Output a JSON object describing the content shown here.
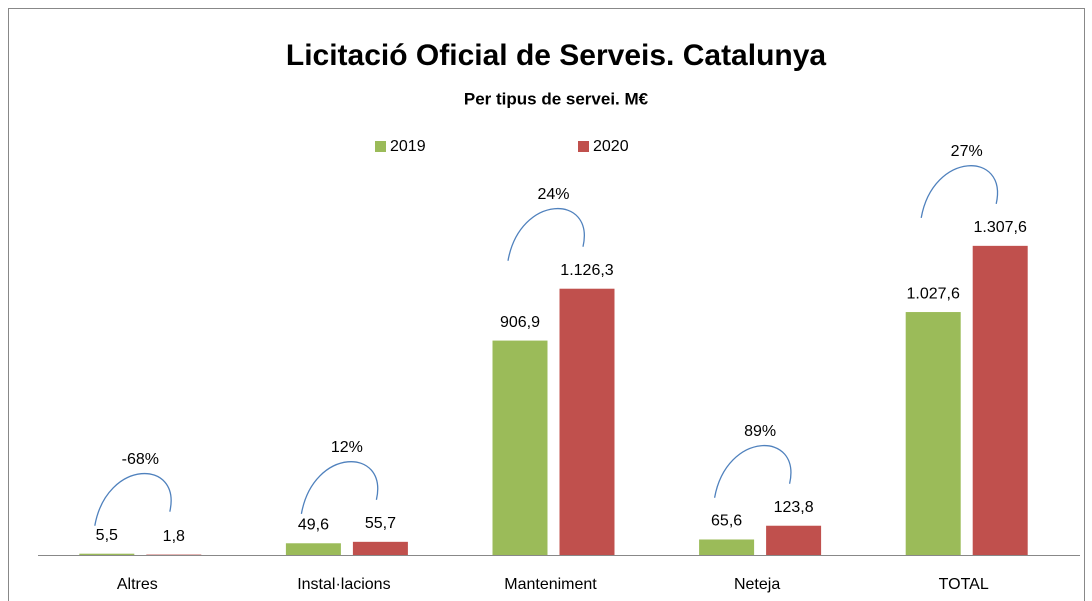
{
  "chart_data": {
    "type": "bar",
    "title": "Licitació Oficial de Serveis. Catalunya",
    "subtitle": "Per tipus de servei. M€",
    "categories": [
      "Altres",
      "Instal·lacions",
      "Manteniment",
      "Neteja",
      "TOTAL"
    ],
    "series": [
      {
        "name": "2019",
        "color": "#9bbb59",
        "values": [
          5.5,
          49.6,
          906.9,
          65.6,
          1027.6
        ],
        "value_labels": [
          "5,5",
          "49,6",
          "906,9",
          "65,6",
          "1.027,6"
        ]
      },
      {
        "name": "2020",
        "color": "#c0504d",
        "values": [
          1.8,
          55.7,
          1126.3,
          123.8,
          1307.6
        ],
        "value_labels": [
          "1,8",
          "55,7",
          "1.126,3",
          "123,8",
          "1.307,6"
        ]
      }
    ],
    "annotations": [
      "-68%",
      "12%",
      "24%",
      "89%",
      "27%"
    ],
    "ylim": [
      0,
      1400
    ]
  }
}
